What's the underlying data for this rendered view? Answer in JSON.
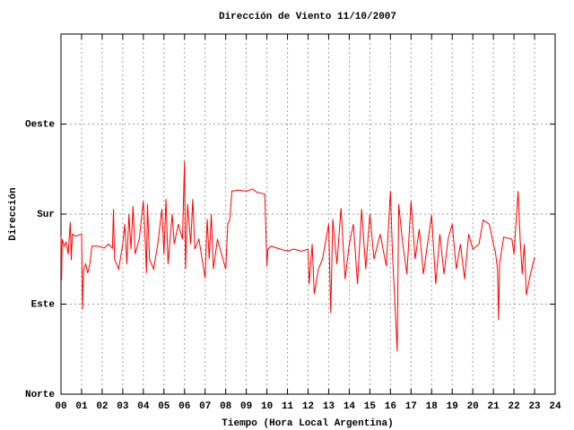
{
  "chart_data": {
    "type": "line",
    "title": "Dirección de Viento 11/10/2007",
    "x_label": "Tiempo (Hora Local Argentina)",
    "y_label": "Dirección",
    "xlim": [
      0,
      24
    ],
    "ylim": [
      0,
      360
    ],
    "grid": true,
    "xticks": [
      {
        "value": 0,
        "label": "00"
      },
      {
        "value": 1,
        "label": "01"
      },
      {
        "value": 2,
        "label": "02"
      },
      {
        "value": 3,
        "label": "03"
      },
      {
        "value": 4,
        "label": "04"
      },
      {
        "value": 5,
        "label": "05"
      },
      {
        "value": 6,
        "label": "06"
      },
      {
        "value": 7,
        "label": "07"
      },
      {
        "value": 8,
        "label": "08"
      },
      {
        "value": 9,
        "label": "09"
      },
      {
        "value": 10,
        "label": "10"
      },
      {
        "value": 11,
        "label": "11"
      },
      {
        "value": 12,
        "label": "12"
      },
      {
        "value": 13,
        "label": "13"
      },
      {
        "value": 14,
        "label": "14"
      },
      {
        "value": 15,
        "label": "15"
      },
      {
        "value": 16,
        "label": "16"
      },
      {
        "value": 17,
        "label": "17"
      },
      {
        "value": 18,
        "label": "18"
      },
      {
        "value": 19,
        "label": "19"
      },
      {
        "value": 20,
        "label": "20"
      },
      {
        "value": 21,
        "label": "21"
      },
      {
        "value": 22,
        "label": "22"
      },
      {
        "value": 23,
        "label": "23"
      },
      {
        "value": 24,
        "label": "24"
      }
    ],
    "yticks": [
      {
        "value": 0,
        "label": "Norte"
      },
      {
        "value": 90,
        "label": "Este"
      },
      {
        "value": 180,
        "label": "Sur"
      },
      {
        "value": 270,
        "label": "Oeste"
      }
    ],
    "color": "#ff0000",
    "x": [
      0.0,
      0.03,
      0.06,
      0.15,
      0.25,
      0.35,
      0.45,
      0.5,
      0.55,
      0.7,
      1.0,
      1.05,
      1.1,
      1.2,
      1.3,
      1.4,
      1.5,
      1.8,
      2.1,
      2.3,
      2.5,
      2.55,
      2.6,
      2.8,
      3.0,
      3.1,
      3.2,
      3.3,
      3.4,
      3.5,
      3.6,
      3.8,
      4.0,
      4.1,
      4.15,
      4.2,
      4.3,
      4.5,
      4.7,
      4.9,
      5.0,
      5.1,
      5.2,
      5.4,
      5.5,
      5.7,
      5.9,
      6.0,
      6.05,
      6.15,
      6.3,
      6.4,
      6.5,
      6.7,
      7.0,
      7.1,
      7.2,
      7.3,
      7.4,
      7.6,
      7.8,
      8.0,
      8.1,
      8.2,
      8.3,
      8.6,
      9.0,
      9.3,
      9.5,
      9.9,
      10.0,
      10.05,
      10.2,
      10.5,
      11.0,
      11.3,
      11.7,
      12.0,
      12.05,
      12.2,
      12.3,
      12.5,
      12.7,
      13.0,
      13.1,
      13.2,
      13.4,
      13.6,
      13.8,
      14.0,
      14.2,
      14.4,
      14.6,
      14.8,
      15.0,
      15.2,
      15.5,
      15.8,
      16.0,
      16.1,
      16.33,
      16.4,
      16.6,
      16.8,
      17.0,
      17.2,
      17.4,
      17.6,
      17.8,
      18.0,
      18.2,
      18.4,
      18.6,
      18.8,
      19.0,
      19.2,
      19.4,
      19.6,
      19.8,
      20.0,
      20.3,
      20.5,
      20.8,
      21.0,
      21.1,
      21.2,
      21.25,
      21.3,
      21.5,
      21.9,
      22.0,
      22.2,
      22.3,
      22.4,
      22.5,
      22.6,
      22.8,
      23.0
    ],
    "values": [
      158,
      114,
      155,
      148,
      152,
      140,
      172,
      134,
      160,
      158,
      160,
      85,
      125,
      130,
      121,
      130,
      148,
      148,
      146,
      150,
      146,
      185,
      135,
      125,
      150,
      170,
      130,
      180,
      145,
      188,
      140,
      155,
      193,
      150,
      121,
      190,
      135,
      125,
      150,
      185,
      140,
      195,
      130,
      180,
      150,
      170,
      155,
      233,
      125,
      190,
      150,
      195,
      145,
      155,
      116,
      175,
      135,
      180,
      125,
      155,
      140,
      125,
      170,
      175,
      203,
      204,
      203,
      205,
      202,
      200,
      128,
      145,
      148,
      146,
      143,
      145,
      143,
      145,
      110,
      150,
      100,
      125,
      135,
      170,
      81,
      175,
      130,
      186,
      115,
      150,
      170,
      110,
      185,
      125,
      180,
      135,
      160,
      128,
      203,
      140,
      43,
      190,
      150,
      120,
      193,
      135,
      165,
      120,
      150,
      179,
      110,
      160,
      120,
      155,
      170,
      125,
      150,
      115,
      160,
      145,
      150,
      174,
      170,
      150,
      142,
      125,
      74,
      130,
      157,
      155,
      140,
      203,
      155,
      120,
      150,
      99,
      120,
      137
    ]
  }
}
